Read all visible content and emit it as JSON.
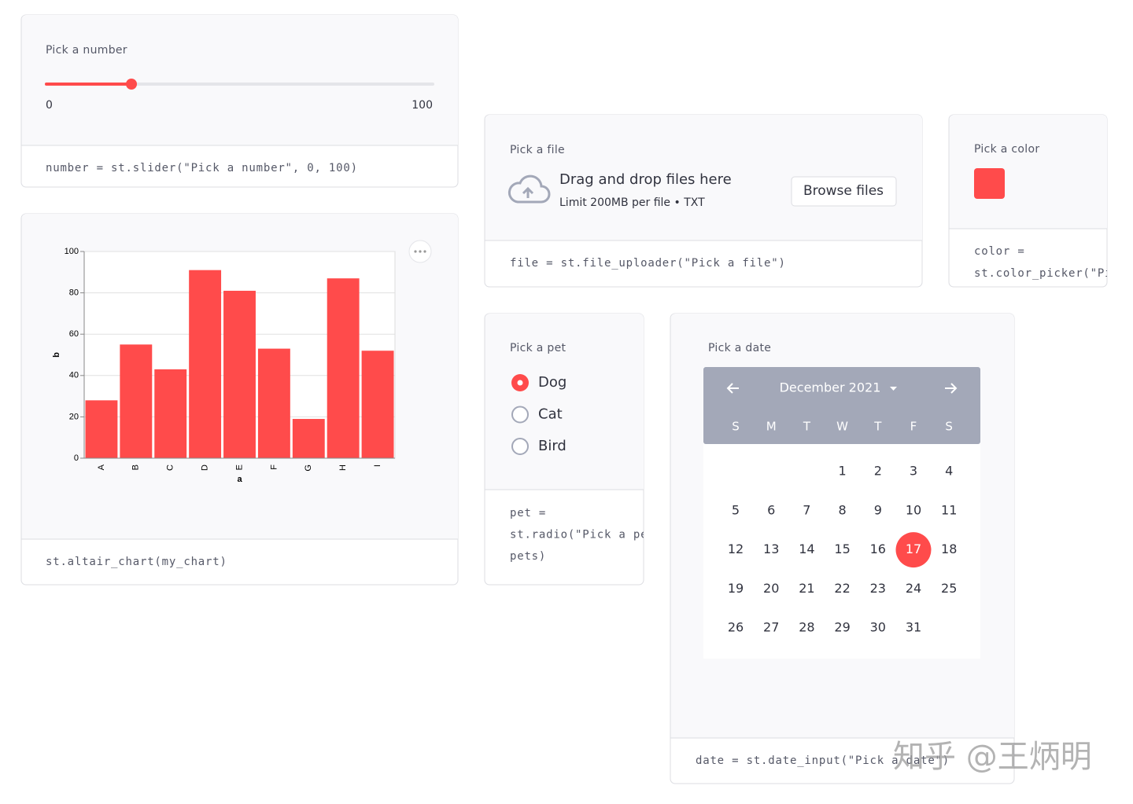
{
  "slider": {
    "label": "Pick a number",
    "min": 0,
    "max": 100,
    "value": 22,
    "code": "number = st.slider(\"Pick a number\", 0, 100)"
  },
  "chart_data": {
    "type": "bar",
    "categories": [
      "A",
      "B",
      "C",
      "D",
      "E",
      "F",
      "G",
      "H",
      "I"
    ],
    "values": [
      28,
      55,
      43,
      91,
      81,
      53,
      19,
      87,
      52
    ],
    "color": "#ff4b4b",
    "x_label": "a",
    "y_label": "b",
    "ylim": [
      0,
      100
    ],
    "yticks": [
      0,
      20,
      40,
      60,
      80,
      100
    ],
    "grid": true,
    "code": "st.altair_chart(my_chart)"
  },
  "uploader": {
    "label": "Pick a file",
    "title": "Drag and drop files here",
    "hint": "Limit 200MB per file • TXT",
    "button": "Browse files",
    "code": "file = st.file_uploader(\"Pick a file\")"
  },
  "color_picker": {
    "label": "Pick a color",
    "color": "#ff4b4b",
    "code": [
      "color =",
      "st.color_picker(\"Pi"
    ]
  },
  "radio": {
    "label": "Pick a pet",
    "options": [
      "Dog",
      "Cat",
      "Bird"
    ],
    "selected": 0,
    "code": [
      "pet =",
      "st.radio(\"Pick a pe",
      "pets)"
    ]
  },
  "date": {
    "label": "Pick a date",
    "month": "December 2021",
    "weekdays": [
      "S",
      "M",
      "T",
      "W",
      "T",
      "F",
      "S"
    ],
    "days": [
      1,
      2,
      3,
      4,
      5,
      6,
      7,
      8,
      9,
      10,
      11,
      12,
      13,
      14,
      15,
      16,
      17,
      18,
      19,
      20,
      21,
      22,
      23,
      24,
      25,
      26,
      27,
      28,
      29,
      30,
      31
    ],
    "selected": 17,
    "code": "date = st.date_input(\"Pick a date\")"
  },
  "watermark": "知乎 @王炳明"
}
